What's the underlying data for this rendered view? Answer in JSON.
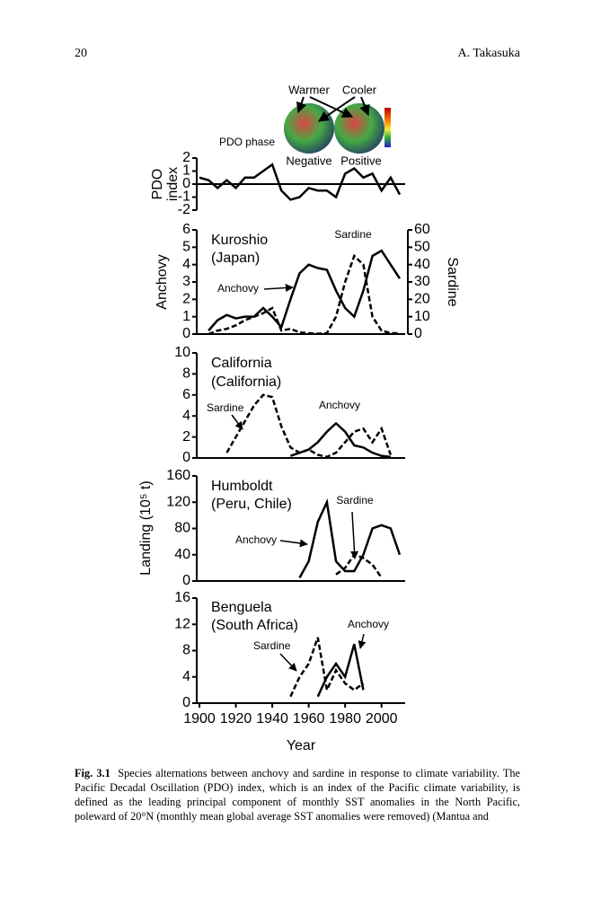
{
  "header": {
    "page_number": "20",
    "author": "A. Takasuka"
  },
  "caption": {
    "label": "Fig. 3.1",
    "text": "Species alternations between anchovy and sardine in response to climate variability. The Pacific Decadal Oscillation (PDO) index, which is an index of the Pacific climate variability, is defined as the leading principal component of monthly SST anomalies in the North Pacific, poleward of 20°N (monthly mean global average SST anomalies were removed) (Mantua and"
  },
  "chart_data": [
    {
      "type": "line",
      "ylabel": [
        "PDO",
        "index"
      ],
      "annotations": [
        "Warmer",
        "Cooler",
        "PDO phase",
        "Negative",
        "Positive"
      ],
      "xlim": [
        1900,
        2010
      ],
      "ylim": [
        -2,
        2
      ],
      "yticks": [
        2,
        1,
        0,
        -1,
        -2
      ],
      "x": [
        1900,
        1905,
        1910,
        1915,
        1920,
        1925,
        1930,
        1935,
        1940,
        1945,
        1950,
        1955,
        1960,
        1965,
        1970,
        1975,
        1980,
        1985,
        1990,
        1995,
        2000,
        2005,
        2010
      ],
      "series": [
        {
          "name": "PDO",
          "color": "#000000",
          "line_style": "solid",
          "values": [
            0.5,
            0.3,
            -0.3,
            0.3,
            -0.3,
            0.5,
            0.5,
            1.0,
            1.5,
            -0.5,
            -1.2,
            -1.0,
            -0.3,
            -0.5,
            -0.5,
            -1.0,
            0.8,
            1.2,
            0.5,
            0.8,
            -0.5,
            0.5,
            -0.8
          ]
        }
      ]
    },
    {
      "type": "line",
      "ylabel": "Anchovy",
      "y2label": "Sardine",
      "annotations": [
        "Kuroshio",
        "(Japan)",
        "Sardine",
        "Anchovy"
      ],
      "xlim": [
        1900,
        2010
      ],
      "ylim": [
        0,
        6
      ],
      "yticks": [
        0,
        1,
        2,
        3,
        4,
        5,
        6
      ],
      "y2lim": [
        0,
        60
      ],
      "y2ticks": [
        0,
        10,
        20,
        30,
        40,
        50,
        60
      ],
      "x": [
        1905,
        1910,
        1915,
        1920,
        1925,
        1930,
        1935,
        1940,
        1945,
        1950,
        1955,
        1960,
        1965,
        1970,
        1975,
        1980,
        1985,
        1990,
        1995,
        2000,
        2005,
        2010
      ],
      "series": [
        {
          "name": "Anchovy",
          "color": "#000000",
          "line_style": "solid",
          "values": [
            0.2,
            0.8,
            1.1,
            0.9,
            1.0,
            1.0,
            1.5,
            1.0,
            0.4,
            2.0,
            3.5,
            4.0,
            3.8,
            3.7,
            2.5,
            1.5,
            1.0,
            2.5,
            4.5,
            4.8,
            4.0,
            3.2
          ]
        },
        {
          "name": "Sardine",
          "color": "#000000",
          "line_style": "dashed",
          "axis": "y2",
          "values": [
            0,
            2,
            3,
            5,
            8,
            10,
            12,
            15,
            2,
            3,
            1,
            0.5,
            0.2,
            0.5,
            10,
            30,
            45,
            40,
            10,
            2,
            0.5,
            0.5
          ]
        }
      ]
    },
    {
      "type": "line",
      "ylabel": "Landing (10⁵ t)",
      "annotations": [
        "California",
        "(California)",
        "Sardine",
        "Anchovy"
      ],
      "xlim": [
        1900,
        2010
      ],
      "ylim": [
        0,
        10
      ],
      "yticks": [
        0,
        2,
        4,
        6,
        8,
        10
      ],
      "x": [
        1915,
        1920,
        1925,
        1930,
        1935,
        1940,
        1945,
        1950,
        1955,
        1960,
        1965,
        1970,
        1975,
        1980,
        1985,
        1990,
        1995,
        2000,
        2005
      ],
      "series": [
        {
          "name": "Sardine",
          "color": "#000000",
          "line_style": "dashed",
          "values": [
            0.5,
            2,
            3.5,
            5,
            6,
            5.8,
            3,
            1,
            0.5,
            0.8,
            0.3,
            0.1,
            0.5,
            1.5,
            2.5,
            2.8,
            1.5,
            2.8,
            0.3
          ]
        },
        {
          "name": "Anchovy",
          "color": "#000000",
          "line_style": "solid",
          "values": [
            null,
            null,
            null,
            null,
            null,
            null,
            null,
            0.2,
            0.5,
            0.8,
            1.5,
            2.5,
            3.3,
            2.5,
            1.2,
            1.0,
            0.5,
            0.2,
            0.1
          ]
        }
      ]
    },
    {
      "type": "line",
      "annotations": [
        "Humboldt",
        "(Peru, Chile)",
        "Sardine",
        "Anchovy"
      ],
      "xlim": [
        1900,
        2010
      ],
      "ylim": [
        0,
        160
      ],
      "yticks": [
        0,
        40,
        80,
        120,
        160
      ],
      "x": [
        1955,
        1960,
        1965,
        1970,
        1975,
        1980,
        1985,
        1990,
        1995,
        2000,
        2005,
        2010
      ],
      "series": [
        {
          "name": "Anchovy",
          "color": "#000000",
          "line_style": "solid",
          "values": [
            5,
            30,
            90,
            120,
            30,
            15,
            15,
            40,
            80,
            85,
            80,
            40
          ]
        },
        {
          "name": "Sardine",
          "color": "#000000",
          "line_style": "dashed",
          "values": [
            null,
            null,
            null,
            null,
            10,
            20,
            40,
            35,
            25,
            5,
            null,
            null
          ]
        }
      ]
    },
    {
      "type": "line",
      "annotations": [
        "Benguela",
        "(South Africa)",
        "Anchovy",
        "Sardine"
      ],
      "xlim": [
        1900,
        2010
      ],
      "ylim": [
        0,
        16
      ],
      "yticks": [
        0,
        4,
        8,
        12,
        16
      ],
      "xticks": [
        1900,
        1920,
        1940,
        1960,
        1980,
        2000
      ],
      "xlabel": "Year",
      "x": [
        1950,
        1955,
        1960,
        1965,
        1970,
        1975,
        1980,
        1985,
        1990
      ],
      "series": [
        {
          "name": "Sardine",
          "color": "#000000",
          "line_style": "dashed",
          "values": [
            1,
            4,
            6,
            10,
            2,
            5,
            3,
            2,
            3
          ]
        },
        {
          "name": "Anchovy",
          "color": "#000000",
          "line_style": "solid",
          "values": [
            null,
            null,
            null,
            1,
            4,
            6,
            4,
            9,
            2
          ]
        }
      ]
    }
  ]
}
